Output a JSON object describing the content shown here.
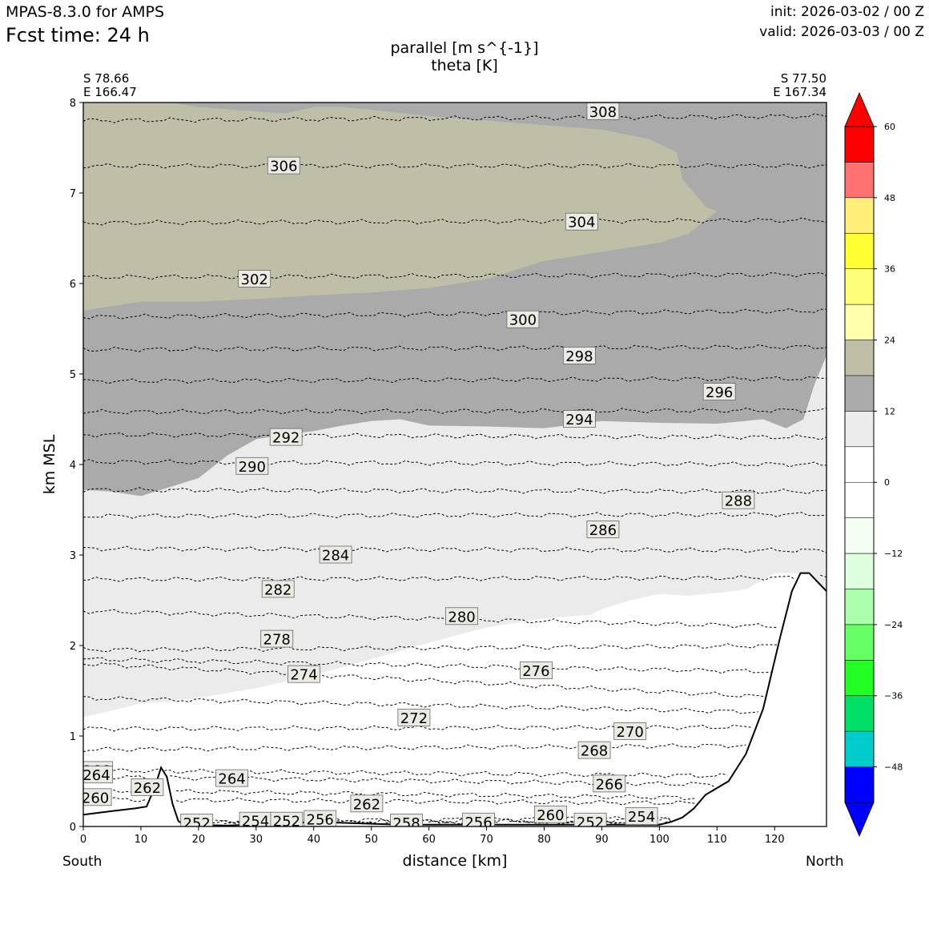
{
  "header": {
    "model": "MPAS-8.3.0 for AMPS",
    "fcst_label": "Fcst time:   24 h",
    "init": "init: 2026-03-02 / 00 Z",
    "valid": "valid: 2026-03-03 / 00 Z"
  },
  "chart_data": {
    "type": "contour",
    "title": "parallel [m s^{-1}]",
    "subtitle": "theta [K]",
    "xlabel": "distance [km]",
    "ylabel": "km MSL",
    "xlim": [
      0,
      129
    ],
    "ylim": [
      0,
      8
    ],
    "xticks": [
      0,
      10,
      20,
      30,
      40,
      50,
      60,
      70,
      80,
      90,
      100,
      110,
      120
    ],
    "yticks": [
      0,
      1,
      2,
      3,
      4,
      5,
      6,
      7,
      8
    ],
    "corner_left": {
      "lat": "S 78.66",
      "lon": "E 166.47"
    },
    "corner_right": {
      "lat": "S 77.50",
      "lon": "E 167.34"
    },
    "end_left": "South",
    "end_right": "North",
    "colorbar": {
      "ticks": [
        60,
        48,
        36,
        24,
        12,
        0,
        -12,
        -24,
        -36,
        -48
      ],
      "tick_labels": [
        "60",
        "48",
        "36",
        "24",
        "12",
        "0",
        "−12",
        "−24",
        "−36",
        "−48"
      ],
      "levels": [
        -54,
        -48,
        -42,
        -36,
        -30,
        -24,
        -18,
        -12,
        -6,
        0,
        6,
        12,
        18,
        24,
        30,
        36,
        42,
        48,
        54,
        60
      ],
      "colors": [
        "#0000ff",
        "#00cccc",
        "#00e066",
        "#22ff22",
        "#66ff66",
        "#aaffaa",
        "#ddffdd",
        "#f2fff2",
        "#ffffff",
        "#ffffff",
        "#ebebeb",
        "#aaaaaa",
        "#bfbfa8",
        "#ffffaa",
        "#ffff77",
        "#ffff33",
        "#ffee77",
        "#ff7070",
        "#ff0000"
      ],
      "extend_low": "#0000ff",
      "extend_high": "#ff0000"
    },
    "filled_regions": [
      {
        "name": "parallel 6-12",
        "color": "#ebebeb",
        "boundary": [
          [
            0,
            1.21
          ],
          [
            5,
            1.28
          ],
          [
            10,
            1.36
          ],
          [
            15,
            1.38
          ],
          [
            20,
            1.42
          ],
          [
            30,
            1.53
          ],
          [
            40,
            1.67
          ],
          [
            50,
            1.85
          ],
          [
            60,
            2.03
          ],
          [
            70,
            2.2
          ],
          [
            80,
            2.3
          ],
          [
            88,
            2.34
          ],
          [
            90,
            2.4
          ],
          [
            95,
            2.5
          ],
          [
            100,
            2.57
          ],
          [
            105,
            2.55
          ],
          [
            110,
            2.58
          ],
          [
            115,
            2.62
          ],
          [
            120,
            2.8
          ],
          [
            124,
            2.8
          ],
          [
            127,
            2.6
          ],
          [
            129,
            2.6
          ],
          [
            129,
            5.2
          ],
          [
            127,
            4.9
          ],
          [
            125,
            4.5
          ],
          [
            122,
            4.4
          ],
          [
            118,
            4.5
          ],
          [
            110,
            4.45
          ],
          [
            100,
            4.46
          ],
          [
            90,
            4.48
          ],
          [
            80,
            4.4
          ],
          [
            70,
            4.42
          ],
          [
            60,
            4.43
          ],
          [
            55,
            4.5
          ],
          [
            50,
            4.48
          ],
          [
            45,
            4.43
          ],
          [
            40,
            4.37
          ],
          [
            35,
            4.33
          ],
          [
            30,
            4.28
          ],
          [
            25,
            4.1
          ],
          [
            20,
            3.85
          ],
          [
            15,
            3.75
          ],
          [
            10,
            3.65
          ],
          [
            5,
            3.7
          ],
          [
            0,
            3.72
          ]
        ]
      },
      {
        "name": "parallel 12-18",
        "color": "#aaaaaa",
        "boundary": [
          [
            0,
            3.72
          ],
          [
            5,
            3.7
          ],
          [
            10,
            3.65
          ],
          [
            15,
            3.75
          ],
          [
            20,
            3.85
          ],
          [
            25,
            4.1
          ],
          [
            30,
            4.28
          ],
          [
            35,
            4.33
          ],
          [
            40,
            4.37
          ],
          [
            45,
            4.43
          ],
          [
            50,
            4.48
          ],
          [
            55,
            4.5
          ],
          [
            60,
            4.43
          ],
          [
            70,
            4.42
          ],
          [
            80,
            4.4
          ],
          [
            90,
            4.48
          ],
          [
            100,
            4.46
          ],
          [
            110,
            4.45
          ],
          [
            118,
            4.5
          ],
          [
            122,
            4.4
          ],
          [
            125,
            4.5
          ],
          [
            127,
            4.9
          ],
          [
            129,
            5.2
          ],
          [
            129,
            8
          ],
          [
            0,
            8
          ]
        ]
      },
      {
        "name": "parallel 18-24",
        "color": "#bfbfa8",
        "boundary": [
          [
            0,
            5.7
          ],
          [
            10,
            5.8
          ],
          [
            20,
            5.8
          ],
          [
            30,
            5.83
          ],
          [
            40,
            5.87
          ],
          [
            50,
            5.9
          ],
          [
            60,
            5.95
          ],
          [
            70,
            6.05
          ],
          [
            80,
            6.25
          ],
          [
            90,
            6.35
          ],
          [
            100,
            6.45
          ],
          [
            105,
            6.55
          ],
          [
            110,
            6.8
          ],
          [
            108,
            6.85
          ],
          [
            104,
            7.15
          ],
          [
            103,
            7.45
          ],
          [
            98,
            7.6
          ],
          [
            90,
            7.7
          ],
          [
            80,
            7.75
          ],
          [
            70,
            7.8
          ],
          [
            60,
            7.85
          ],
          [
            50,
            7.92
          ],
          [
            45,
            7.95
          ],
          [
            40,
            7.95
          ],
          [
            35,
            7.88
          ],
          [
            30,
            7.9
          ],
          [
            20,
            7.95
          ],
          [
            15,
            8
          ],
          [
            0,
            8
          ]
        ]
      }
    ],
    "terrain": [
      [
        0,
        0.13
      ],
      [
        5,
        0.17
      ],
      [
        9,
        0.2
      ],
      [
        11,
        0.22
      ],
      [
        12.5,
        0.45
      ],
      [
        13.5,
        0.65
      ],
      [
        14.5,
        0.55
      ],
      [
        15.5,
        0.25
      ],
      [
        16.5,
        0.06
      ],
      [
        17.5,
        0.02
      ],
      [
        25,
        0.01
      ],
      [
        40,
        0.05
      ],
      [
        55,
        0.02
      ],
      [
        70,
        0.02
      ],
      [
        85,
        0.02
      ],
      [
        100,
        0.02
      ],
      [
        102,
        0.05
      ],
      [
        104,
        0.1
      ],
      [
        106,
        0.2
      ],
      [
        108,
        0.35
      ],
      [
        112,
        0.5
      ],
      [
        115,
        0.8
      ],
      [
        118,
        1.3
      ],
      [
        121,
        2.1
      ],
      [
        123,
        2.6
      ],
      [
        124.5,
        2.8
      ],
      [
        126,
        2.8
      ],
      [
        127.5,
        2.7
      ],
      [
        129,
        2.6
      ]
    ],
    "theta_contours": [
      {
        "value": 308,
        "label_pos": [
          90,
          7.9
        ],
        "points": [
          [
            0,
            7.8
          ],
          [
            129,
            7.85
          ]
        ]
      },
      {
        "value": 306,
        "label_pos": [
          35,
          7.3
        ],
        "points": [
          [
            0,
            7.3
          ],
          [
            129,
            7.3
          ]
        ]
      },
      {
        "value": 304,
        "label_pos": [
          87,
          6.68
        ],
        "points": [
          [
            0,
            6.67
          ],
          [
            129,
            6.7
          ]
        ]
      },
      {
        "value": 302,
        "label_pos": [
          30,
          6.05
        ],
        "points": [
          [
            0,
            6.07
          ],
          [
            129,
            6.1
          ]
        ]
      },
      {
        "value": 300,
        "label_pos": [
          76,
          5.6
        ],
        "points": [
          [
            0,
            5.63
          ],
          [
            129,
            5.7
          ]
        ]
      },
      {
        "value": 298,
        "label_pos": [
          86,
          5.2
        ],
        "points": [
          [
            0,
            5.27
          ],
          [
            129,
            5.3
          ]
        ]
      },
      {
        "value": 296,
        "label_pos": [
          110,
          4.8
        ],
        "points": [
          [
            0,
            4.92
          ],
          [
            129,
            4.95
          ]
        ]
      },
      {
        "value": 294,
        "label_pos": [
          86,
          4.5
        ],
        "points": [
          [
            0,
            4.58
          ],
          [
            129,
            4.6
          ]
        ]
      },
      {
        "value": 292,
        "label_pos": [
          35,
          4.3
        ],
        "points": [
          [
            0,
            4.33
          ],
          [
            129,
            4.3
          ]
        ]
      },
      {
        "value": 290,
        "label_pos": [
          29,
          3.98
        ],
        "points": [
          [
            0,
            4.03
          ],
          [
            129,
            4.0
          ]
        ]
      },
      {
        "value": 288,
        "label_pos": [
          114,
          3.6
        ],
        "points": [
          [
            0,
            3.72
          ],
          [
            129,
            3.7
          ]
        ]
      },
      {
        "value": 286,
        "label_pos": [
          90,
          3.28
        ],
        "points": [
          [
            0,
            3.43
          ],
          [
            129,
            3.45
          ]
        ]
      },
      {
        "value": 284,
        "label_pos": [
          44,
          3.0
        ],
        "points": [
          [
            0,
            3.07
          ],
          [
            129,
            3.05
          ]
        ]
      },
      {
        "value": 282,
        "label_pos": [
          34,
          2.62
        ],
        "points": [
          [
            0,
            2.73
          ],
          [
            129,
            2.75
          ]
        ]
      },
      {
        "value": 280,
        "label_pos": [
          66,
          2.32
        ],
        "points": [
          [
            0,
            2.38
          ],
          [
            129,
            2.2
          ]
        ]
      },
      {
        "value": 278,
        "label_pos": [
          33,
          2.07
        ],
        "points": [
          [
            0,
            1.95
          ],
          [
            129,
            2.0
          ]
        ]
      },
      {
        "value": 276,
        "label_pos": [
          79,
          1.72
        ],
        "points": [
          [
            0,
            1.85
          ],
          [
            129,
            1.7
          ]
        ]
      },
      {
        "value": 274,
        "label_pos": [
          38,
          1.68
        ],
        "points": [
          [
            0,
            1.8
          ],
          [
            129,
            1.4
          ]
        ]
      },
      {
        "value": 272,
        "label_pos": [
          57,
          1.2
        ],
        "points": [
          [
            0,
            1.42
          ],
          [
            129,
            1.25
          ]
        ]
      },
      {
        "value": 270,
        "label_pos": [
          95,
          1.05
        ],
        "points": [
          [
            0,
            1.08
          ],
          [
            129,
            1.1
          ]
        ]
      },
      {
        "value": 268,
        "label_pos": [
          89,
          0.84
        ],
        "points": [
          [
            0,
            0.85
          ],
          [
            129,
            0.9
          ]
        ]
      },
      {
        "value": 266,
        "label_pos": [
          91,
          0.47
        ],
        "points": [
          [
            0,
            0.62
          ],
          [
            129,
            0.55
          ]
        ]
      },
      {
        "value": 264,
        "label_pos": [
          26,
          0.53
        ],
        "points": [
          [
            0,
            0.55
          ],
          [
            129,
            0.45
          ]
        ]
      },
      {
        "value": 262,
        "label_pos": [
          49,
          0.25
        ],
        "points": [
          [
            0,
            0.4
          ],
          [
            129,
            0.3
          ]
        ]
      },
      {
        "value": 260,
        "label_pos": [
          81,
          0.13
        ],
        "points": [
          [
            0,
            0.3
          ],
          [
            129,
            0.25
          ]
        ]
      },
      {
        "value": 258,
        "label_pos": [
          56,
          0.04
        ],
        "points": [
          [
            17,
            0.06
          ],
          [
            129,
            0.1
          ]
        ]
      },
      {
        "value": 256,
        "label_pos": [
          68,
          0.05
        ],
        "points": [
          [
            17,
            0.04
          ],
          [
            129,
            0.08
          ]
        ]
      },
      {
        "value": 254,
        "label_pos": [
          97,
          0.11
        ],
        "points": [
          [
            17,
            0.03
          ],
          [
            129,
            0.06
          ]
        ]
      },
      {
        "value": 252,
        "label_pos": [
          88,
          0.05
        ],
        "points": [
          [
            17,
            0.02
          ],
          [
            129,
            0.04
          ]
        ]
      }
    ],
    "contour_labels": [
      {
        "text": "308",
        "x": 90.2,
        "y": 7.9
      },
      {
        "text": "306",
        "x": 34.8,
        "y": 7.3
      },
      {
        "text": "304",
        "x": 86.5,
        "y": 6.68
      },
      {
        "text": "302",
        "x": 29.7,
        "y": 6.05
      },
      {
        "text": "300",
        "x": 76.3,
        "y": 5.6
      },
      {
        "text": "298",
        "x": 86.1,
        "y": 5.2
      },
      {
        "text": "296",
        "x": 110.4,
        "y": 4.8
      },
      {
        "text": "294",
        "x": 86.1,
        "y": 4.5
      },
      {
        "text": "292",
        "x": 35.2,
        "y": 4.3
      },
      {
        "text": "290",
        "x": 29.3,
        "y": 3.98
      },
      {
        "text": "288",
        "x": 113.7,
        "y": 3.6
      },
      {
        "text": "286",
        "x": 90.2,
        "y": 3.28
      },
      {
        "text": "284",
        "x": 43.8,
        "y": 3.0
      },
      {
        "text": "282",
        "x": 33.8,
        "y": 2.62
      },
      {
        "text": "280",
        "x": 65.7,
        "y": 2.32
      },
      {
        "text": "278",
        "x": 33.6,
        "y": 2.07
      },
      {
        "text": "276",
        "x": 78.6,
        "y": 1.72
      },
      {
        "text": "274",
        "x": 38.3,
        "y": 1.68
      },
      {
        "text": "272",
        "x": 57.4,
        "y": 1.2
      },
      {
        "text": "270",
        "x": 94.9,
        "y": 1.05
      },
      {
        "text": "268",
        "x": 88.7,
        "y": 0.84
      },
      {
        "text": "266",
        "x": 91.3,
        "y": 0.47
      },
      {
        "text": "266",
        "x": 2.3,
        "y": 0.62
      },
      {
        "text": "264",
        "x": 2.3,
        "y": 0.57
      },
      {
        "text": "264",
        "x": 25.8,
        "y": 0.53
      },
      {
        "text": "262",
        "x": 11.1,
        "y": 0.43
      },
      {
        "text": "262",
        "x": 49.2,
        "y": 0.25
      },
      {
        "text": "260",
        "x": 2.1,
        "y": 0.32
      },
      {
        "text": "260",
        "x": 81.1,
        "y": 0.13
      },
      {
        "text": "258",
        "x": 56.1,
        "y": 0.04
      },
      {
        "text": "256",
        "x": 41.1,
        "y": 0.08
      },
      {
        "text": "256",
        "x": 68.6,
        "y": 0.05
      },
      {
        "text": "254",
        "x": 29.9,
        "y": 0.06
      },
      {
        "text": "254",
        "x": 96.9,
        "y": 0.11
      },
      {
        "text": "252",
        "x": 19.7,
        "y": 0.04
      },
      {
        "text": "252",
        "x": 35.3,
        "y": 0.06
      },
      {
        "text": "252",
        "x": 88.0,
        "y": 0.05
      }
    ]
  }
}
